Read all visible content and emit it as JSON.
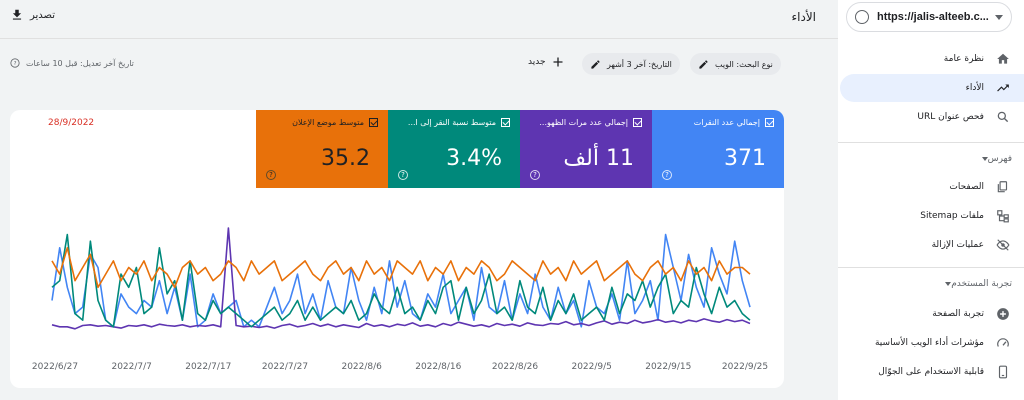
{
  "sidebar": {
    "property_url": "https://jalis-alteeb.c...",
    "items": [
      {
        "label": "نظرة عامة",
        "icon": "home-icon"
      },
      {
        "label": "الأداء",
        "icon": "trending-up-icon"
      },
      {
        "label": "فحص عنوان URL",
        "icon": "search-icon"
      },
      {
        "label": "الصفحات",
        "icon": "pages-icon"
      },
      {
        "label": "ملفات Sitemap",
        "icon": "sitemap-icon"
      },
      {
        "label": "عمليات الإزالة",
        "icon": "eye-off-icon"
      },
      {
        "label": "تجربة الصفحة",
        "icon": "plus-circle-icon"
      },
      {
        "label": "مؤشرات أداء الويب الأساسية",
        "icon": "speed-icon"
      },
      {
        "label": "قابلية الاستخدام على الجوّال",
        "icon": "phone-icon"
      }
    ],
    "sections": {
      "index": "فهرس",
      "experience": "تجربة المستخدم"
    }
  },
  "header": {
    "title": "الأداء",
    "export_label": "تصدير"
  },
  "filters": {
    "search_type": "نوع البحث: الويب",
    "date": "التاريخ: آخر 3 أشهر",
    "new_label": "جديد",
    "last_modified": "تاريخ آخر تعديل: قبل 10 ساعات"
  },
  "metrics": [
    {
      "label": "إجمالي عدد النقرات",
      "value": "371",
      "color": "#4285f4"
    },
    {
      "label": "إجمالي عدد مرات الظهو...",
      "value": "11 ألف",
      "color": "#5e35b1"
    },
    {
      "label": "متوسط نسبة النقر إلى ا...",
      "value": "3.4%",
      "color": "#00897b"
    },
    {
      "label": "متوسط موضع الإعلان",
      "value": "35.2",
      "color": "#e8710a"
    }
  ],
  "annotation": "28/9/2022",
  "chart_data": {
    "type": "line",
    "x_ticks": [
      "2022/6/27",
      "2022/7/7",
      "2022/7/17",
      "2022/7/27",
      "2022/8/6",
      "2022/8/16",
      "2022/8/26",
      "2022/9/5",
      "2022/9/15",
      "2022/9/25"
    ],
    "series": [
      {
        "color": "#4285f4",
        "values": [
          6,
          14,
          8,
          4,
          5,
          13,
          11,
          3,
          2,
          7,
          5,
          4,
          6,
          5,
          9,
          4,
          8,
          3,
          10,
          2,
          3,
          7,
          4,
          5,
          6,
          2,
          3,
          2,
          5,
          8,
          4,
          6,
          10,
          4,
          7,
          3,
          9,
          5,
          4,
          11,
          6,
          3,
          8,
          4,
          12,
          5,
          9,
          4,
          3,
          7,
          5,
          10,
          4,
          6,
          8,
          3,
          11,
          5,
          4,
          9,
          3,
          7,
          4,
          10,
          5,
          3,
          8,
          4,
          6,
          2,
          9,
          5,
          4,
          7,
          3,
          12,
          4,
          6,
          9,
          3,
          16,
          11,
          6,
          13,
          8,
          5,
          14,
          10,
          7,
          15,
          9,
          5
        ]
      },
      {
        "color": "#5e35b1",
        "values": [
          2.3,
          2,
          2,
          1.7,
          2.2,
          2.3,
          2.1,
          2.2,
          2,
          1.8,
          2.2,
          2.1,
          2.3,
          2,
          2.4,
          2.2,
          2.1,
          2.3,
          2,
          2.2,
          2.1,
          2.3,
          2,
          17,
          2.2,
          2,
          2.1,
          1.9,
          2.1,
          1.8,
          2.2,
          2.4,
          2,
          2.2,
          2.5,
          2.1,
          2.4,
          2,
          2.3,
          2.1,
          1.9,
          2.5,
          2.1,
          2.3,
          2,
          2.4,
          2.2,
          2.6,
          2.1,
          2.3,
          2,
          2.5,
          2.2,
          2.7,
          2.4,
          2.1,
          2.3,
          2,
          2.5,
          2.2,
          2.4,
          2.1,
          2.6,
          2.3,
          2.2,
          2.5,
          2.4,
          2.8,
          2.3,
          2.5,
          2.2,
          2.6,
          2.9,
          2.4,
          2.7,
          2.5,
          3,
          2.6,
          2.8,
          3.1,
          2.7,
          2.9,
          2.6,
          3,
          2.8,
          3.2,
          2.9,
          2.7,
          3.1,
          2.8,
          3,
          2.5
        ]
      },
      {
        "color": "#00897b",
        "values": [
          8,
          9,
          16,
          4,
          3,
          15,
          6,
          3,
          2,
          10,
          8,
          11,
          4,
          5,
          14,
          7,
          9,
          3,
          12,
          4,
          3,
          6,
          4,
          5,
          4,
          3,
          2,
          3,
          4,
          5,
          3,
          4,
          6,
          3,
          5,
          3,
          4,
          5,
          4,
          6,
          3,
          4,
          7,
          5,
          4,
          8,
          4,
          5,
          3,
          6,
          4,
          8,
          9,
          3,
          8,
          4,
          6,
          10,
          4,
          5,
          3,
          9,
          5,
          4,
          8,
          3,
          6,
          4,
          7,
          3,
          4,
          5,
          3,
          8,
          4,
          7,
          6,
          9,
          5,
          8,
          10,
          4,
          6,
          5,
          11,
          7,
          4,
          8,
          5,
          6,
          4,
          3
        ]
      },
      {
        "color": "#e8710a",
        "values": [
          12,
          10,
          14,
          9,
          11,
          13,
          8,
          10,
          12,
          9,
          11,
          10,
          12,
          9,
          11,
          10,
          8,
          11,
          12,
          10,
          11,
          9,
          10,
          12,
          11,
          9,
          12,
          10,
          11,
          12,
          9,
          10,
          11,
          12,
          10,
          9,
          11,
          12,
          10,
          11,
          9,
          12,
          10,
          11,
          9,
          12,
          11,
          10,
          12,
          9,
          11,
          10,
          12,
          9,
          11,
          10,
          12,
          11,
          9,
          10,
          12,
          11,
          10,
          9,
          12,
          10,
          11,
          9,
          12,
          10,
          11,
          12,
          9,
          10,
          11,
          12,
          10,
          9,
          11,
          12,
          10,
          11,
          9,
          12,
          10,
          11,
          9,
          12,
          10,
          11,
          11,
          10
        ]
      }
    ]
  }
}
